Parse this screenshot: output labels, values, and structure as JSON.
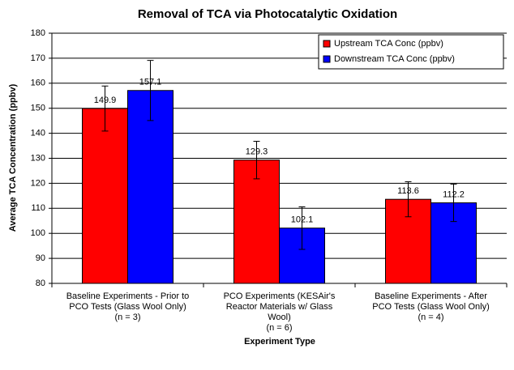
{
  "chart_data": {
    "type": "bar",
    "title": "Removal of TCA via Photocatalytic Oxidation",
    "ylabel": "Average TCA Concentration (ppbv)",
    "xlabel": "Experiment Type",
    "categories": [
      [
        "Baseline Experiments - Prior to",
        "PCO Tests (Glass Wool Only)",
        "(n = 3)"
      ],
      [
        "PCO Experiments (KESAir's",
        "Reactor Materials w/ Glass",
        "Wool)",
        "(n = 6)"
      ],
      [
        "Baseline Experiments - After",
        "PCO Tests (Glass Wool Only)",
        "(n = 4)"
      ]
    ],
    "series": [
      {
        "name": "Upstream TCA Conc (ppbv)",
        "color": "#ff0000",
        "values": [
          149.9,
          129.3,
          113.6
        ],
        "errors": [
          9,
          7.5,
          7
        ]
      },
      {
        "name": "Downstream TCA Conc (ppbv)",
        "color": "#0000ff",
        "values": [
          157.1,
          102.1,
          112.2
        ],
        "errors": [
          12,
          8.5,
          7.5
        ]
      }
    ],
    "ylim": [
      80,
      180
    ],
    "yticks": [
      80,
      90,
      100,
      110,
      120,
      130,
      140,
      150,
      160,
      170,
      180
    ],
    "grid": true,
    "legend": "top-right"
  }
}
